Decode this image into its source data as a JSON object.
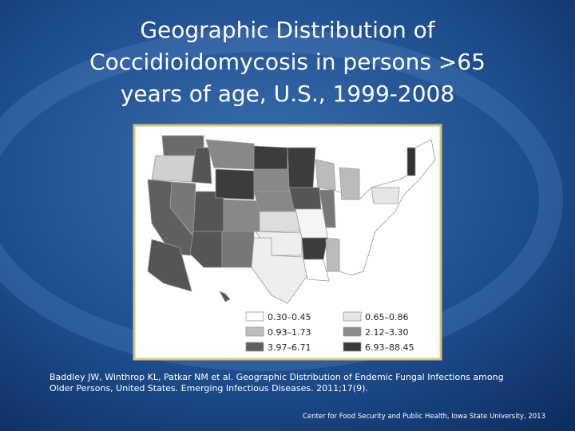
{
  "slide": {
    "title_lines": [
      "Geographic Distribution of",
      "Coccidioidomycosis in persons >65",
      "years of age, U.S., 1999-2008"
    ],
    "legend": [
      {
        "label": "0.30–0.45",
        "color": "#ffffff"
      },
      {
        "label": "0.65–0.86",
        "color": "#e6e6e6"
      },
      {
        "label": "0.93–1.73",
        "color": "#bdbdbd"
      },
      {
        "label": "2.12–3.30",
        "color": "#8c8c8c"
      },
      {
        "label": "3.97–6.71",
        "color": "#5f5f5f"
      },
      {
        "label": "6.93–88.45",
        "color": "#3a3a3a"
      }
    ],
    "citation_lines": [
      "Baddley JW, Winthrop KL, Patkar NM et al. Geographic Distribution of Endemic Fungal Infections among",
      "Older Persons, United States. Emerging Infectious Diseases. 2011;17(9)."
    ],
    "footer": "Center for Food Security and Public Health, Iowa State University, 2013"
  }
}
